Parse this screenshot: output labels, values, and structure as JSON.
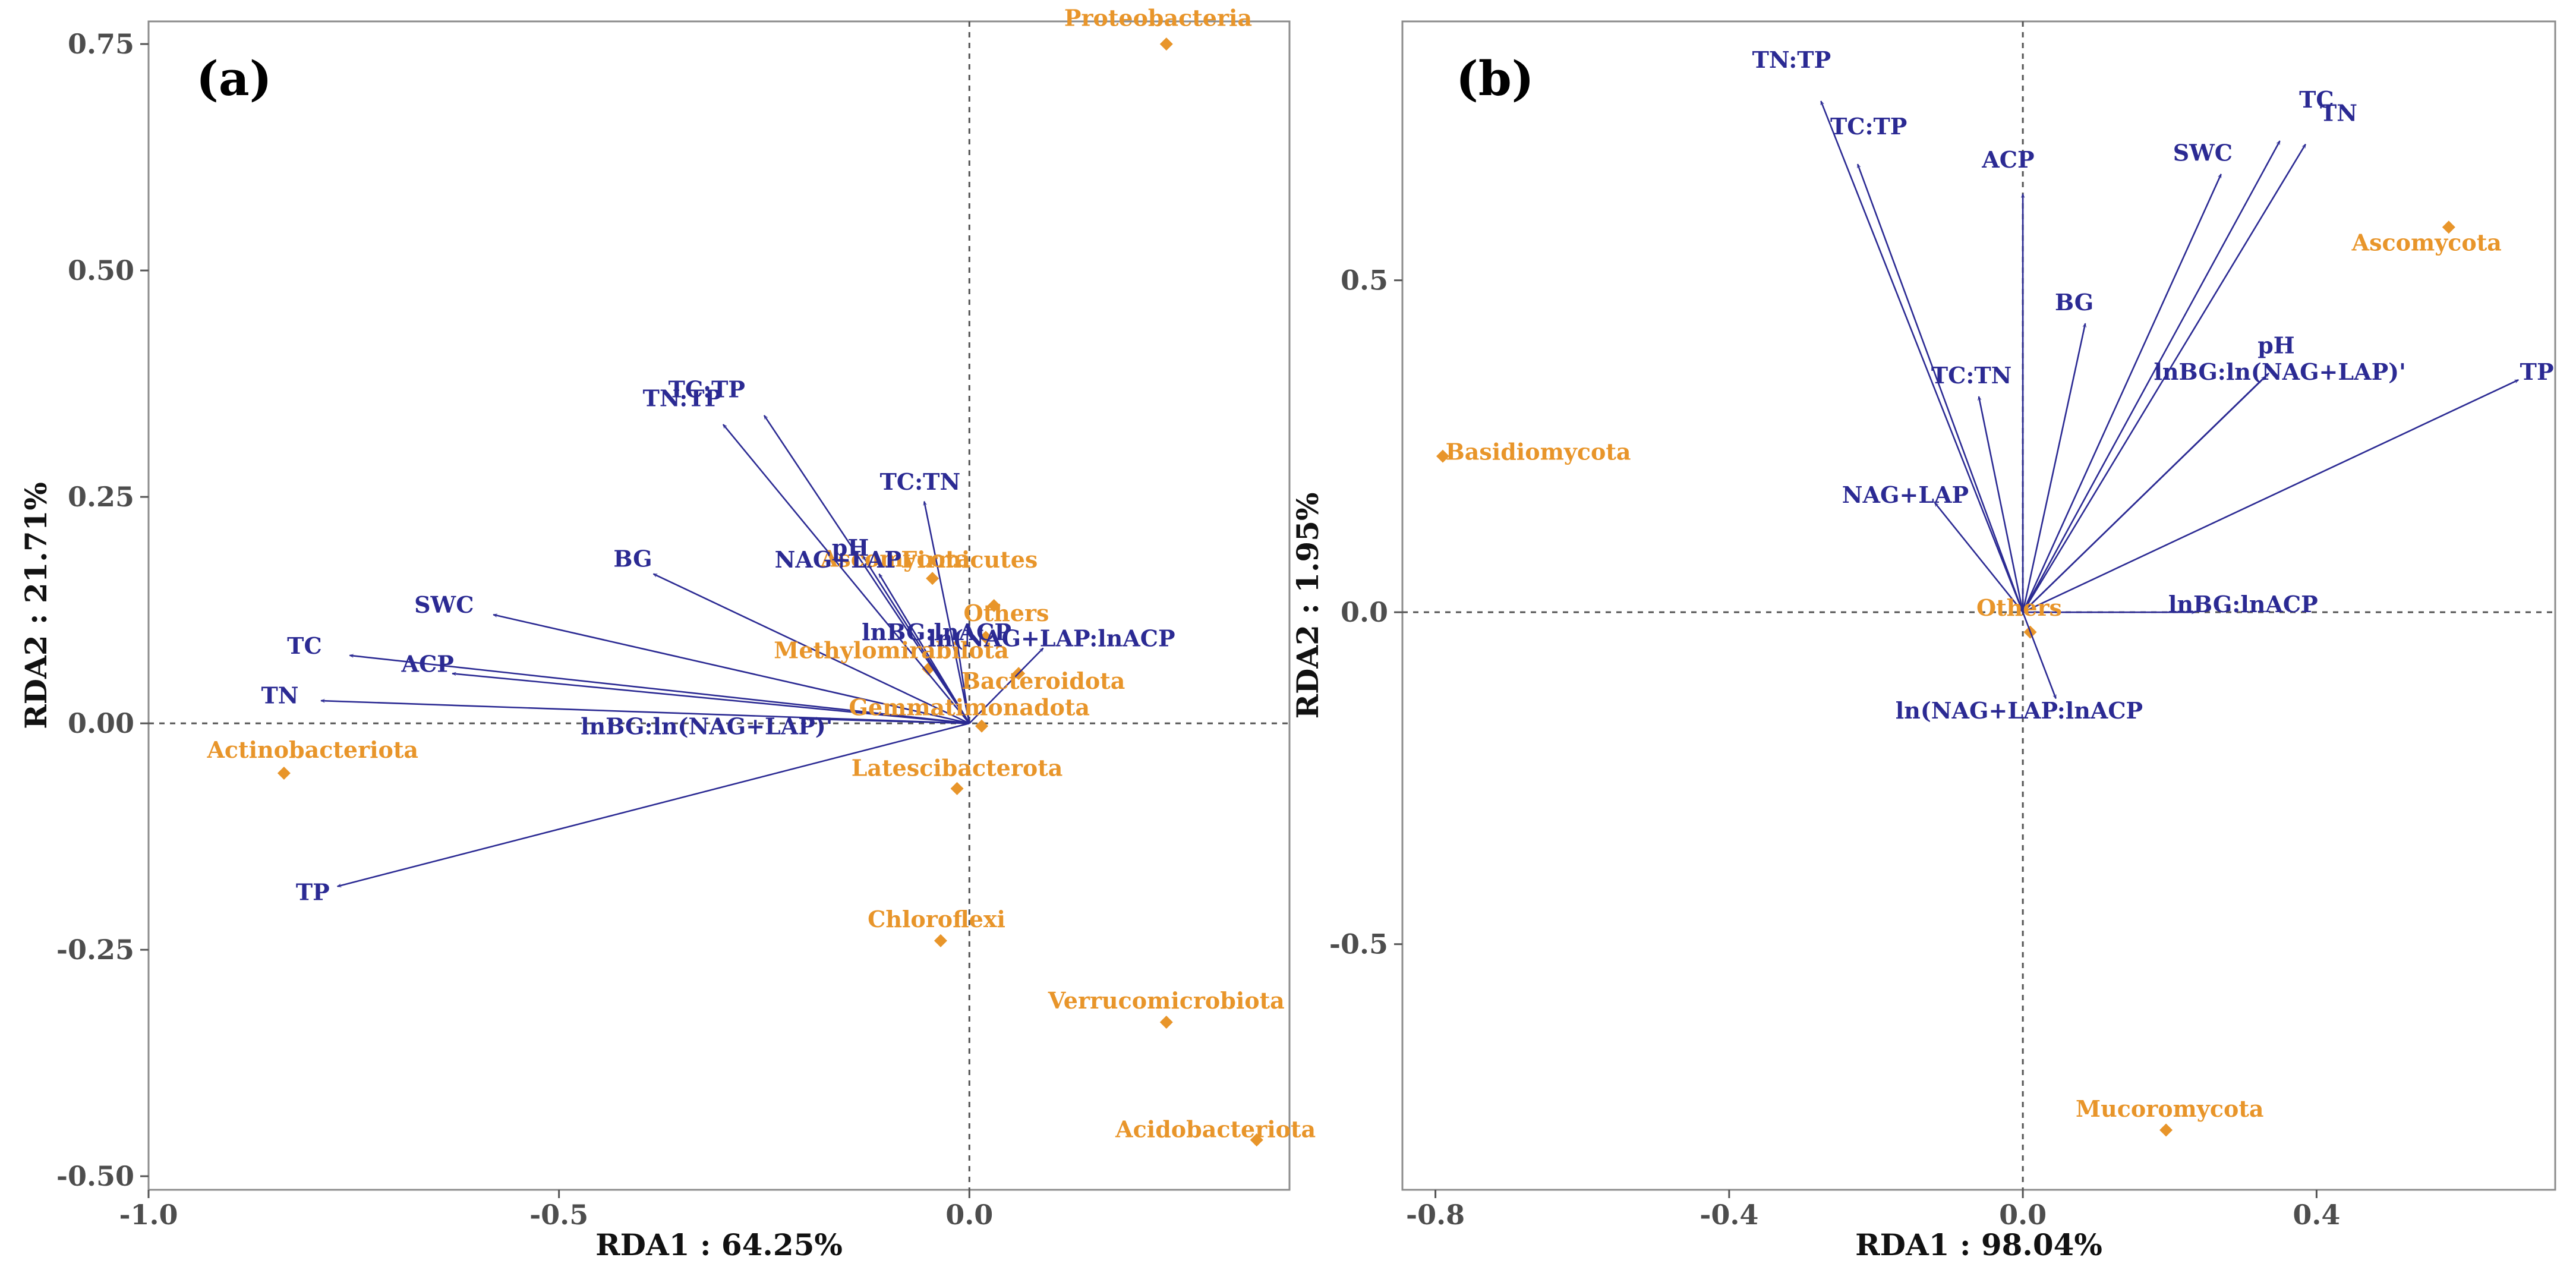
{
  "chart_data": [
    {
      "type": "scatter",
      "panel_label": "(a)",
      "xlabel": "RDA1 : 64.25%",
      "ylabel": "RDA2 : 21.71%",
      "xlim": [
        -1.0,
        0.39
      ],
      "ylim": [
        -0.515,
        0.775
      ],
      "x_ticks": [
        -1.0,
        -0.5,
        0.0
      ],
      "x_tick_labels": [
        "-1.0",
        "-0.5",
        "0.0"
      ],
      "y_ticks": [
        -0.5,
        -0.25,
        0.0,
        0.25,
        0.5,
        0.75
      ],
      "y_tick_labels": [
        "-0.50",
        "-0.25",
        "0.00",
        "0.25",
        "0.50",
        "0.75"
      ],
      "grid": false,
      "reference_lines": {
        "x": 0.0,
        "y": 0.0
      },
      "arrow_color": "#2b2a93",
      "point_color": "#e8952a",
      "arrows": [
        {
          "label": "TC:TP",
          "x": -0.25,
          "y": 0.34,
          "lx": -0.32,
          "ly": 0.36
        },
        {
          "label": "TN:TP",
          "x": -0.3,
          "y": 0.33,
          "lx": -0.35,
          "ly": 0.35
        },
        {
          "label": "TC:TN",
          "x": -0.055,
          "y": 0.245,
          "lx": -0.06,
          "ly": 0.258
        },
        {
          "label": "pH",
          "x": -0.13,
          "y": 0.185,
          "lx": -0.145,
          "ly": 0.185
        },
        {
          "label": "NAG+LAP",
          "x": -0.11,
          "y": 0.165,
          "lx": -0.16,
          "ly": 0.172
        },
        {
          "label": "BG",
          "x": -0.385,
          "y": 0.165,
          "lx": -0.41,
          "ly": 0.173
        },
        {
          "label": "SWC",
          "x": -0.58,
          "y": 0.12,
          "lx": -0.64,
          "ly": 0.122
        },
        {
          "label": "TC",
          "x": -0.755,
          "y": 0.075,
          "lx": -0.81,
          "ly": 0.077
        },
        {
          "label": "ACP",
          "x": -0.63,
          "y": 0.055,
          "lx": -0.66,
          "ly": 0.057
        },
        {
          "label": "TN",
          "x": -0.79,
          "y": 0.025,
          "lx": -0.84,
          "ly": 0.022
        },
        {
          "label": "lnBG:lnACP",
          "x": -0.015,
          "y": 0.09,
          "lx": -0.04,
          "ly": 0.092
        },
        {
          "label": "ln(NAG+LAP:lnACP",
          "x": 0.09,
          "y": 0.083,
          "lx": 0.1,
          "ly": 0.085
        },
        {
          "label": "lnBG:ln(NAG+LAP)'",
          "x": -0.2,
          "y": 0.005,
          "lx": -0.32,
          "ly": -0.012
        },
        {
          "label": "TP",
          "x": -0.77,
          "y": -0.18,
          "lx": -0.8,
          "ly": -0.195
        }
      ],
      "points": [
        {
          "label": "Proteobacteria",
          "x": 0.24,
          "y": 0.75,
          "lx": 0.23,
          "ly": 0.77
        },
        {
          "label": "Firmicutes",
          "x": -0.045,
          "y": 0.16,
          "lx": 0.0,
          "ly": 0.172
        },
        {
          "label": "Ascomycota",
          "x": 0.03,
          "y": 0.13,
          "lx": -0.09,
          "ly": 0.173
        },
        {
          "label": "Others",
          "x": 0.02,
          "y": 0.095,
          "lx": 0.045,
          "ly": 0.113
        },
        {
          "label": "Methylomirabilota",
          "x": -0.05,
          "y": 0.06,
          "lx": -0.095,
          "ly": 0.072
        },
        {
          "label": "Bacteroidota",
          "x": 0.06,
          "y": 0.055,
          "lx": 0.09,
          "ly": 0.038
        },
        {
          "label": "Gemmatimonadota",
          "x": 0.015,
          "y": -0.003,
          "lx": 0.0,
          "ly": 0.009
        },
        {
          "label": "Actinobacteriota",
          "x": -0.835,
          "y": -0.055,
          "lx": -0.8,
          "ly": -0.038
        },
        {
          "label": "Latescibacterota",
          "x": -0.015,
          "y": -0.072,
          "lx": -0.015,
          "ly": -0.058
        },
        {
          "label": "Chloroflexi",
          "x": -0.035,
          "y": -0.24,
          "lx": -0.04,
          "ly": -0.225
        },
        {
          "label": "Verrucomicrobiota",
          "x": 0.24,
          "y": -0.33,
          "lx": 0.24,
          "ly": -0.315
        },
        {
          "label": "Acidobacteriota",
          "x": 0.35,
          "y": -0.46,
          "lx": 0.3,
          "ly": -0.457
        }
      ]
    },
    {
      "type": "scatter",
      "panel_label": "(b)",
      "xlabel": "RDA1 : 98.04%",
      "ylabel": "RDA2 : 1.95%",
      "xlim": [
        -0.845,
        0.725
      ],
      "ylim": [
        -0.87,
        0.89
      ],
      "x_ticks": [
        -0.8,
        -0.4,
        0.0,
        0.4
      ],
      "x_tick_labels": [
        "-0.8",
        "-0.4",
        "0.0",
        "0.4"
      ],
      "y_ticks": [
        -0.5,
        0.0,
        0.5
      ],
      "y_tick_labels": [
        "-0.5",
        "0.0",
        "0.5"
      ],
      "grid": false,
      "reference_lines": {
        "x": 0.0,
        "y": 0.0
      },
      "arrow_color": "#2b2a93",
      "point_color": "#e8952a",
      "arrows": [
        {
          "label": "TN:TP",
          "x": -0.275,
          "y": 0.77,
          "lx": -0.315,
          "ly": 0.82
        },
        {
          "label": "TC:TP",
          "x": -0.225,
          "y": 0.675,
          "lx": -0.21,
          "ly": 0.72
        },
        {
          "label": "ACP",
          "x": 0.0,
          "y": 0.63,
          "lx": -0.02,
          "ly": 0.67
        },
        {
          "label": "SWC",
          "x": 0.27,
          "y": 0.66,
          "lx": 0.245,
          "ly": 0.68
        },
        {
          "label": "TC",
          "x": 0.35,
          "y": 0.71,
          "lx": 0.4,
          "ly": 0.76
        },
        {
          "label": "TN",
          "x": 0.385,
          "y": 0.705,
          "lx": 0.43,
          "ly": 0.74
        },
        {
          "label": "BG",
          "x": 0.085,
          "y": 0.435,
          "lx": 0.07,
          "ly": 0.455
        },
        {
          "label": "pH",
          "x": 0.335,
          "y": 0.36,
          "lx": 0.345,
          "ly": 0.39
        },
        {
          "label": "lnBG:ln(NAG+LAP)'",
          "x": 0.33,
          "y": 0.355,
          "lx": 0.35,
          "ly": 0.35
        },
        {
          "label": "TP",
          "x": 0.675,
          "y": 0.35,
          "lx": 0.7,
          "ly": 0.35
        },
        {
          "label": "TC:TN",
          "x": -0.06,
          "y": 0.325,
          "lx": -0.07,
          "ly": 0.345
        },
        {
          "label": "NAG+LAP",
          "x": -0.12,
          "y": 0.165,
          "lx": -0.16,
          "ly": 0.165
        },
        {
          "label": "lnBG:lnACP",
          "x": 0.235,
          "y": 0.0,
          "lx": 0.3,
          "ly": 0.0
        },
        {
          "label": "ln(NAG+LAP:lnACP",
          "x": 0.045,
          "y": -0.13,
          "lx": -0.005,
          "ly": -0.16
        }
      ],
      "points": [
        {
          "label": "Ascomycota",
          "x": 0.58,
          "y": 0.58,
          "lx": 0.55,
          "ly": 0.545
        },
        {
          "label": "Basidiomycota",
          "x": -0.79,
          "y": 0.235,
          "lx": -0.66,
          "ly": 0.23
        },
        {
          "label": "Others",
          "x": 0.01,
          "y": -0.03,
          "lx": -0.005,
          "ly": -0.005
        },
        {
          "label": "Mucoromycota",
          "x": 0.195,
          "y": -0.78,
          "lx": 0.2,
          "ly": -0.76
        }
      ]
    }
  ]
}
